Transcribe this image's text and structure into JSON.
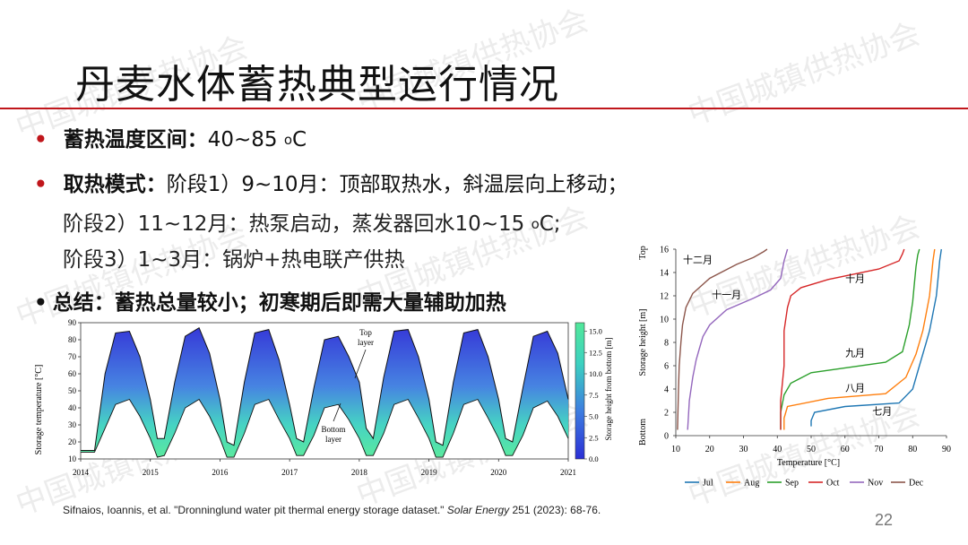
{
  "slide": {
    "title": "丹麦水体蓄热典型运行情况",
    "bullets": [
      {
        "label": "蓄热温度区间：",
        "text": "40~85 ",
        "unit_small": "o",
        "unit_tail": "C"
      },
      {
        "label": "取热模式：",
        "text": "阶段1）9~10月：顶部取热水，斜温层向上移动；"
      },
      {
        "label": "总结：",
        "text": "蓄热总量较小；初寒期后即需大量辅助加热"
      }
    ],
    "subs": [
      {
        "text": "阶段2）11~12月：热泵启动，蒸发器回水10~15 ",
        "unit_small": "o",
        "unit_tail": "C;"
      },
      {
        "text": "阶段3）1~3月：锅炉+热电联产供热"
      }
    ],
    "citation": {
      "authors": "Sifnaios, Ioannis, et al. \"Dronninglund water pit thermal energy storage dataset.\" ",
      "journal": "Solar Energy",
      "tail": " 251 (2023): 68-76."
    },
    "page_number": "22",
    "watermark": "中国城镇供热协会",
    "accent_color": "#c0161b"
  },
  "chart_data": [
    {
      "type": "area",
      "title": "",
      "xlabel": "",
      "ylabel": "Storage temperature [°C]",
      "xlim": [
        2014,
        2021
      ],
      "ylim": [
        10,
        90
      ],
      "x_ticks": [
        "2014",
        "2015",
        "2016",
        "2017",
        "2018",
        "2019",
        "2020",
        "2021"
      ],
      "y_ticks": [
        "10",
        "20",
        "30",
        "40",
        "50",
        "60",
        "70",
        "80",
        "90"
      ],
      "colorbar": {
        "label": "Storage height from bottom [m]",
        "range": [
          0,
          16
        ],
        "ticks": [
          "0.0",
          "2.5",
          "5.0",
          "7.5",
          "10.0",
          "12.5",
          "15.0"
        ],
        "colors": [
          "#2b2fd6",
          "#3d7de0",
          "#3cd1c0",
          "#52e89a"
        ]
      },
      "annotations": [
        {
          "text": "Top layer",
          "x": 2018.0,
          "y": 80
        },
        {
          "text": "Bottom layer",
          "x": 2017.6,
          "y": 22
        }
      ],
      "x": [
        2014.0,
        2014.2,
        2014.35,
        2014.5,
        2014.7,
        2014.85,
        2015.0,
        2015.1,
        2015.2,
        2015.35,
        2015.5,
        2015.7,
        2015.85,
        2016.0,
        2016.1,
        2016.2,
        2016.35,
        2016.5,
        2016.7,
        2016.85,
        2017.0,
        2017.1,
        2017.2,
        2017.35,
        2017.5,
        2017.7,
        2017.85,
        2018.0,
        2018.1,
        2018.2,
        2018.35,
        2018.5,
        2018.7,
        2018.85,
        2019.0,
        2019.1,
        2019.2,
        2019.35,
        2019.5,
        2019.7,
        2019.85,
        2020.0,
        2020.1,
        2020.2,
        2020.35,
        2020.5,
        2020.7,
        2020.85,
        2021.0
      ],
      "series": [
        {
          "name": "Top layer",
          "values": [
            15,
            15,
            60,
            84,
            85,
            70,
            45,
            22,
            22,
            55,
            82,
            87,
            72,
            45,
            20,
            18,
            55,
            84,
            86,
            68,
            42,
            22,
            20,
            52,
            80,
            82,
            70,
            55,
            28,
            22,
            58,
            85,
            86,
            70,
            45,
            20,
            18,
            55,
            84,
            86,
            70,
            45,
            22,
            20,
            52,
            82,
            85,
            72,
            45
          ]
        },
        {
          "name": "Bottom layer",
          "values": [
            14,
            14,
            28,
            42,
            45,
            35,
            22,
            11,
            12,
            25,
            40,
            45,
            35,
            22,
            11,
            11,
            25,
            42,
            45,
            33,
            22,
            12,
            12,
            24,
            40,
            42,
            33,
            22,
            12,
            12,
            25,
            42,
            45,
            34,
            22,
            11,
            11,
            25,
            42,
            45,
            34,
            22,
            12,
            12,
            24,
            40,
            44,
            35,
            22
          ]
        }
      ]
    },
    {
      "type": "line",
      "title": "",
      "xlabel": "Temperature [°C]",
      "ylabel": "Storage height [m]",
      "xlim": [
        10,
        90
      ],
      "ylim": [
        0,
        16
      ],
      "x_ticks": [
        "10",
        "20",
        "30",
        "40",
        "50",
        "60",
        "70",
        "80",
        "90"
      ],
      "y_ticks": [
        "0",
        "2",
        "4",
        "6",
        "8",
        "10",
        "12",
        "14",
        "16"
      ],
      "y_side_labels": {
        "top": "Top",
        "bottom": "Bottom"
      },
      "legend": "bottom",
      "series": [
        {
          "name": "Jul",
          "color": "#1f77b4",
          "cn": "七月",
          "label_at": [
            71,
            1.8
          ],
          "x": [
            50,
            50,
            51,
            60,
            76,
            80,
            82,
            84,
            85,
            86,
            87,
            87.5,
            88,
            88.5
          ],
          "y": [
            0.8,
            1.3,
            2.0,
            2.5,
            2.8,
            4.0,
            6.0,
            8.0,
            9.0,
            10.5,
            12.0,
            13.5,
            15.0,
            16.0
          ]
        },
        {
          "name": "Aug",
          "color": "#ff7f0e",
          "cn": "八月",
          "label_at": [
            63,
            3.8
          ],
          "x": [
            42,
            42,
            43,
            55,
            72,
            78,
            81,
            83,
            84,
            85,
            85.5,
            86,
            86.5
          ],
          "y": [
            0.5,
            1.5,
            2.5,
            3.2,
            3.6,
            5.0,
            7.0,
            9.0,
            10.5,
            12.0,
            13.5,
            15.0,
            16.0
          ]
        },
        {
          "name": "Sep",
          "color": "#2ca02c",
          "cn": "九月",
          "label_at": [
            63,
            6.8
          ],
          "x": [
            41,
            41,
            42,
            44,
            50,
            72,
            77,
            79,
            80,
            80.5,
            81,
            81.5,
            82
          ],
          "y": [
            0.5,
            2.0,
            3.5,
            4.5,
            5.4,
            6.3,
            7.2,
            9.5,
            11.5,
            13.0,
            14.5,
            15.5,
            16.0
          ]
        },
        {
          "name": "Oct",
          "color": "#d62728",
          "cn": "十月",
          "label_at": [
            63,
            13.2
          ],
          "x": [
            41,
            41,
            42,
            42,
            43,
            44,
            47,
            55,
            70,
            76,
            77,
            77.5
          ],
          "y": [
            0.5,
            3.0,
            6.0,
            9.0,
            11.0,
            12.0,
            12.7,
            13.4,
            14.3,
            15.0,
            15.6,
            16.0
          ]
        },
        {
          "name": "Nov",
          "color": "#9467bd",
          "cn": "十一月",
          "label_at": [
            25,
            11.8
          ],
          "x": [
            13.5,
            14,
            15,
            16,
            17,
            18,
            20,
            25,
            33,
            38,
            41,
            42,
            43
          ],
          "y": [
            0.5,
            3.0,
            5.0,
            6.5,
            7.5,
            8.5,
            9.5,
            10.8,
            11.8,
            12.5,
            13.5,
            15.0,
            16.0
          ]
        },
        {
          "name": "Dec",
          "color": "#8c564b",
          "cn": "十二月",
          "label_at": [
            16.5,
            14.8
          ],
          "x": [
            10.5,
            10.8,
            11,
            11.5,
            12,
            13,
            15,
            20,
            28,
            33,
            36,
            37
          ],
          "y": [
            0.5,
            4.0,
            6.0,
            8.0,
            9.5,
            11.0,
            12.2,
            13.5,
            14.7,
            15.3,
            15.8,
            16.0
          ]
        }
      ]
    }
  ]
}
